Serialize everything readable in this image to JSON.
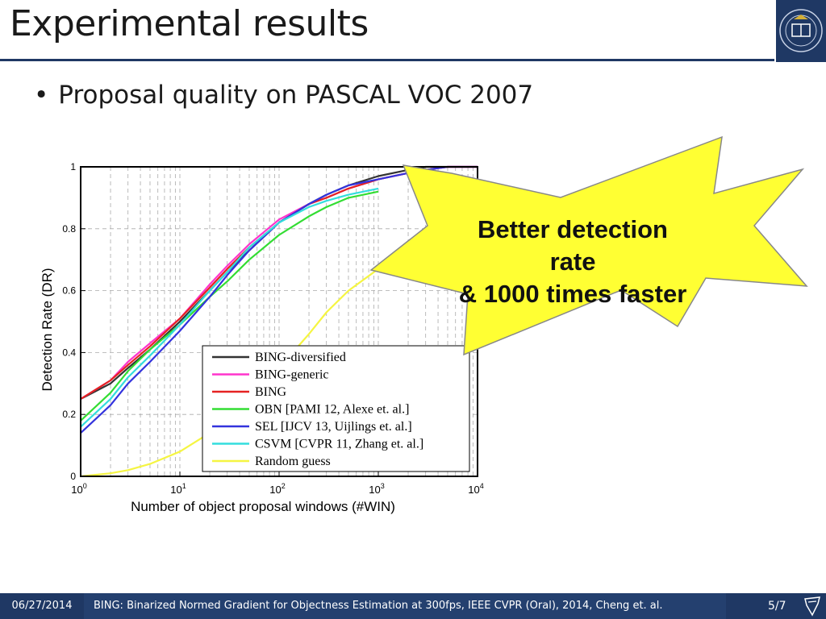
{
  "slide": {
    "title": "Experimental results",
    "bullet": "Proposal quality on PASCAL VOC 2007",
    "callout_line1": "Better detection rate",
    "callout_line2": "& 1000 times faster"
  },
  "footer": {
    "date": "06/27/2014",
    "citation": "BING: Binarized Normed Gradient for Objectness Estimation at 300fps, IEEE CVPR (Oral), 2014, Cheng et. al.",
    "page": "5/7"
  },
  "colors": {
    "navy": "#1f3864",
    "callout_fill": "#ffff33"
  },
  "chart_data": {
    "type": "line",
    "xlabel": "Number of object proposal windows (#WIN)",
    "ylabel": "Detection Rate (DR)",
    "xscale": "log",
    "xlim": [
      1,
      10000
    ],
    "ylim": [
      0,
      1
    ],
    "xticks": [
      1,
      10,
      100,
      1000,
      10000
    ],
    "yticks": [
      0,
      0.2,
      0.4,
      0.6,
      0.8,
      1
    ],
    "ytick_labels": [
      "0",
      "0.2",
      "0.4",
      "0.6",
      "0.8",
      "1"
    ],
    "grid": true,
    "legend_position": "bottom-right",
    "series": [
      {
        "name": "BING-diversified",
        "color": "#333333",
        "x": [
          1,
          2,
          3,
          5,
          10,
          20,
          30,
          50,
          100,
          200,
          300,
          500,
          1000,
          2000,
          3000,
          5000,
          10000
        ],
        "y": [
          0.25,
          0.3,
          0.35,
          0.41,
          0.5,
          0.6,
          0.66,
          0.73,
          0.82,
          0.88,
          0.91,
          0.94,
          0.97,
          0.99,
          1.0,
          1.0,
          1.0
        ]
      },
      {
        "name": "BING-generic",
        "color": "#ff33cc",
        "x": [
          1,
          2,
          3,
          5,
          10,
          20,
          30,
          50,
          100,
          200,
          300,
          500,
          1000,
          2000,
          3000,
          5000,
          10000
        ],
        "y": [
          0.25,
          0.31,
          0.37,
          0.43,
          0.51,
          0.62,
          0.68,
          0.75,
          0.83,
          0.88,
          0.9,
          0.93,
          0.96,
          0.98,
          0.99,
          1.0,
          1.0
        ]
      },
      {
        "name": "BING",
        "color": "#e52222",
        "x": [
          1,
          2,
          3,
          5,
          10,
          20,
          30,
          50,
          100,
          200,
          300,
          500,
          1000,
          2000,
          3000,
          5000,
          10000
        ],
        "y": [
          0.25,
          0.31,
          0.36,
          0.42,
          0.51,
          0.61,
          0.67,
          0.74,
          0.82,
          0.88,
          0.9,
          0.93,
          0.96,
          0.98,
          0.99,
          1.0,
          1.0
        ]
      },
      {
        "name": "OBN [PAMI 12, Alexe et. al.]",
        "color": "#33dd33",
        "x": [
          1,
          2,
          3,
          5,
          10,
          20,
          30,
          50,
          100,
          200,
          300,
          500,
          1000
        ],
        "y": [
          0.18,
          0.27,
          0.34,
          0.41,
          0.49,
          0.58,
          0.63,
          0.7,
          0.78,
          0.84,
          0.87,
          0.9,
          0.92
        ]
      },
      {
        "name": "SEL [IJCV 13, Uijlings et. al.]",
        "color": "#3333dd",
        "x": [
          1,
          2,
          3,
          5,
          10,
          20,
          30,
          50,
          100,
          200,
          300,
          500,
          1000,
          2000,
          3000,
          5000,
          10000
        ],
        "y": [
          0.14,
          0.23,
          0.3,
          0.37,
          0.47,
          0.58,
          0.65,
          0.73,
          0.82,
          0.88,
          0.91,
          0.94,
          0.96,
          0.98,
          0.99,
          1.0,
          1.0
        ]
      },
      {
        "name": "CSVM [CVPR 11, Zhang et. al.]",
        "color": "#33dddd",
        "x": [
          1,
          2,
          3,
          5,
          10,
          20,
          30,
          50,
          100,
          200,
          300,
          500,
          1000
        ],
        "y": [
          0.16,
          0.25,
          0.32,
          0.39,
          0.49,
          0.6,
          0.66,
          0.74,
          0.82,
          0.87,
          0.89,
          0.91,
          0.93
        ]
      },
      {
        "name": "Random guess",
        "color": "#f5f542",
        "x": [
          1,
          2,
          3,
          5,
          10,
          20,
          30,
          50,
          100,
          200,
          300,
          500,
          1000,
          2000,
          3000,
          5000,
          10000
        ],
        "y": [
          0.0,
          0.01,
          0.02,
          0.04,
          0.08,
          0.14,
          0.19,
          0.25,
          0.35,
          0.46,
          0.53,
          0.6,
          0.67,
          0.72,
          0.74,
          0.75,
          0.75
        ]
      }
    ]
  }
}
